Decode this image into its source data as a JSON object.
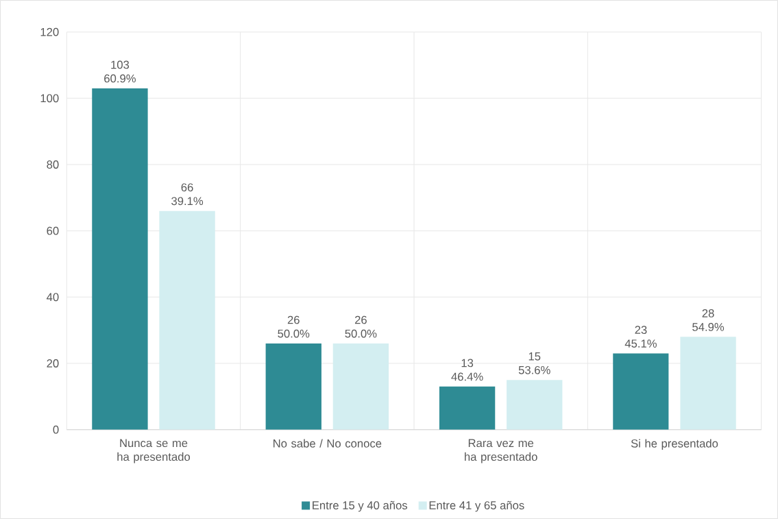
{
  "chart_data": {
    "type": "bar",
    "categories": [
      "Nunca se me ha presentado",
      "No sabe / No conoce",
      "Rara vez me ha presentado",
      "Si he presentado"
    ],
    "series": [
      {
        "name": "Entre 15 y 40 años",
        "color": "#2e8b94",
        "values": [
          103,
          26,
          13,
          23
        ],
        "value_labels": [
          "103 60.9%",
          "26 50.0%",
          "13 46.4%",
          "23 45.1%"
        ]
      },
      {
        "name": "Entre 41 y 65 años",
        "color": "#d3eef1",
        "values": [
          66,
          26,
          15,
          28
        ],
        "value_labels": [
          "66 39.1%",
          "26 50.0%",
          "15 53.6%",
          "28 54.9%"
        ]
      }
    ],
    "ylim": [
      0,
      120
    ],
    "yticks": [
      0,
      20,
      40,
      60,
      80,
      100,
      120
    ],
    "grid": true,
    "legend": "bottom"
  }
}
